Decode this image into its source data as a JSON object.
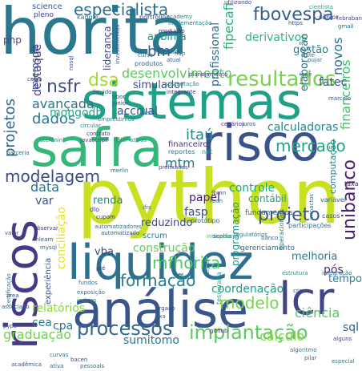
{
  "words": [
    {
      "text": "horita",
      "color": "#2a788e"
    },
    {
      "text": "sistemas",
      "color": "#1fa187"
    },
    {
      "text": "python",
      "color": "#c8e020"
    },
    {
      "text": "liquidez",
      "color": "#2d718e"
    },
    {
      "text": "safra",
      "color": "#35b779"
    },
    {
      "text": "risco",
      "color": "#3b528b"
    },
    {
      "text": "análise",
      "color": "#3a548c"
    },
    {
      "text": "riscos",
      "color": "#443b84"
    },
    {
      "text": "lcr",
      "color": "#414487"
    },
    {
      "text": "resultados",
      "color": "#7ad151"
    },
    {
      "text": "processos",
      "color": "#31688e"
    },
    {
      "text": "implantação",
      "color": "#5ec962"
    },
    {
      "text": "especialista",
      "color": "#2f6c8e"
    },
    {
      "text": "fbovespa",
      "color": "#355f8d"
    },
    {
      "text": "mercado",
      "color": "#22a785"
    },
    {
      "text": "projeto",
      "color": "#39568c"
    },
    {
      "text": "modelo",
      "color": "#7ad151"
    },
    {
      "text": "modelagem",
      "color": "#3e4a89"
    },
    {
      "text": "formação",
      "color": "#277f8e"
    },
    {
      "text": "mfhorita",
      "color": "#52c569"
    },
    {
      "text": "desenvolvimento",
      "color": "#5ec962"
    },
    {
      "text": "unibanco",
      "color": "#481f70"
    },
    {
      "text": "financeiros",
      "color": "#48c16e"
    },
    {
      "text": "projetos",
      "color": "#31688e"
    },
    {
      "text": "dados",
      "color": "#2a788e"
    },
    {
      "text": "dsa",
      "color": "#a5db36"
    },
    {
      "text": "nsfr",
      "color": "#3e4989"
    },
    {
      "text": "itaú",
      "color": "#25858e"
    },
    {
      "text": "mtm",
      "color": "#2c728e"
    },
    {
      "text": "ciência",
      "color": "#54c568"
    },
    {
      "text": "cálculo",
      "color": "#86d549"
    },
    {
      "text": "graduação",
      "color": "#75d054"
    },
    {
      "text": "sumitomo",
      "color": "#29798e"
    },
    {
      "text": "construção",
      "color": "#65cb5e"
    },
    {
      "text": "coordenação",
      "color": "#1e9c89"
    },
    {
      "text": "avançada",
      "color": "#2c738e"
    },
    {
      "text": "calculadoras",
      "color": "#24868e"
    },
    {
      "text": "mongodb",
      "color": "#22a785"
    },
    {
      "text": "derivativos",
      "color": "#2fb47c"
    },
    {
      "text": "fipecafi",
      "color": "#2db27d"
    },
    {
      "text": "bm",
      "color": "#38588c"
    },
    {
      "text": "destaque",
      "color": "#414487"
    },
    {
      "text": "controle",
      "color": "#22a884"
    },
    {
      "text": "papel",
      "color": "#482173"
    },
    {
      "text": "fasp",
      "color": "#3e4a89"
    },
    {
      "text": "var",
      "color": "#3b528b"
    },
    {
      "text": "renda",
      "color": "#23898e"
    },
    {
      "text": "conciliação",
      "color": "#e5e419"
    },
    {
      "text": "accrual",
      "color": "#3b528b"
    },
    {
      "text": "fatec",
      "color": "#3a548c"
    },
    {
      "text": "sql",
      "color": "#33638d"
    },
    {
      "text": "cea",
      "color": "#287d8e"
    },
    {
      "text": "cpa",
      "color": "#2c738e"
    },
    {
      "text": "relatórios",
      "color": "#90d743"
    },
    {
      "text": "simulador",
      "color": "#3e4989"
    },
    {
      "text": "novos",
      "color": "#2d718e"
    },
    {
      "text": "melhoria",
      "color": "#287c8e"
    },
    {
      "text": "pós",
      "color": "#46337e"
    },
    {
      "text": "tempo",
      "color": "#26828e"
    },
    {
      "text": "gestão",
      "color": "#27808e"
    },
    {
      "text": "data",
      "color": "#2e6f8e"
    },
    {
      "text": "elaboração",
      "color": "#2e6e8e"
    },
    {
      "text": "reduzindo",
      "color": "#3e4989"
    },
    {
      "text": "scrum",
      "color": "#2a788e"
    },
    {
      "text": "vba",
      "color": "#3f4889"
    },
    {
      "text": "liderança",
      "color": "#404688"
    },
    {
      "text": "anbima",
      "color": "#1f958b"
    },
    {
      "text": "profissional",
      "color": "#2d708e"
    },
    {
      "text": "financeiro",
      "color": "#46327e"
    },
    {
      "text": "experiência",
      "color": "#3b528b"
    },
    {
      "text": "programação",
      "color": "#1f968b"
    },
    {
      "text": "computação",
      "color": "#26828e"
    },
    {
      "text": "contábil",
      "color": "#1f9e89"
    },
    {
      "text": "microsoft",
      "color": "#414487"
    },
    {
      "text": "php",
      "color": "#3e4989"
    },
    {
      "text": "science",
      "color": "#38588c"
    },
    {
      "text": "pleno",
      "color": "#433e85"
    },
    {
      "text": "kaggle",
      "color": "#2a788e"
    },
    {
      "text": "portfólios",
      "color": "#3b528b"
    },
    {
      "text": "academy",
      "color": "#25858e"
    },
    {
      "text": "sênior",
      "color": "#46327e"
    },
    {
      "text": "cientista",
      "color": "#22a884"
    },
    {
      "text": "febraban",
      "color": "#3e4a89"
    },
    {
      "text": "gmail",
      "color": "#2d708e"
    },
    {
      "text": "implementação",
      "color": "#26828e"
    },
    {
      "text": "produção",
      "color": "#482475"
    },
    {
      "text": "tesouraria",
      "color": "#1f988b"
    },
    {
      "text": "fundamentos",
      "color": "#35608d"
    },
    {
      "text": "gerenciamento",
      "color": "#31688e"
    },
    {
      "text": "operacionais",
      "color": "#2a788e"
    },
    {
      "text": "participações",
      "color": "#2c728e"
    },
    {
      "text": "casos",
      "color": "#3d4e8a"
    },
    {
      "text": "variável",
      "color": "#33638d"
    },
    {
      "text": "taxa",
      "color": "#482677"
    },
    {
      "text": "dlo",
      "color": "#414487"
    },
    {
      "text": "ifrs",
      "color": "#2c728e"
    },
    {
      "text": "protótipo",
      "color": "#31688e"
    },
    {
      "text": "cupom",
      "color": "#46337e"
    },
    {
      "text": "mlearn",
      "color": "#3b528b"
    },
    {
      "text": "mysql",
      "color": "#31688e"
    },
    {
      "text": "automatizadores",
      "color": "#2d708e"
    },
    {
      "text": "automatizado",
      "color": "#3b528b"
    },
    {
      "text": "indicadores",
      "color": "#35b779"
    },
    {
      "text": "regulatórios",
      "color": "#2a788e"
    },
    {
      "text": "cenários",
      "color": "#46327e"
    },
    {
      "text": "juros",
      "color": "#3b528b"
    },
    {
      "text": "reportes",
      "color": "#287c8e"
    },
    {
      "text": "net",
      "color": "#1f9e89"
    },
    {
      "text": "prefixadas",
      "color": "#3e4a89"
    },
    {
      "text": "merlin",
      "color": "#2d708e"
    },
    {
      "text": "javascript",
      "color": "#404688"
    },
    {
      "text": "stefanini",
      "color": "#23898e"
    },
    {
      "text": "dólar",
      "color": "#25858e"
    },
    {
      "text": "ativos",
      "color": "#21918c"
    },
    {
      "text": "contrato",
      "color": "#433e85"
    },
    {
      "text": "asset",
      "color": "#2e6e8e"
    },
    {
      "text": "circular",
      "color": "#25838e"
    },
    {
      "text": "empréstimos",
      "color": "#287d8e"
    },
    {
      "text": "liquido",
      "color": "#3e4989"
    },
    {
      "text": "tibor",
      "color": "#3b528b"
    },
    {
      "text": "junior",
      "color": "#414487"
    },
    {
      "text": "integrante",
      "color": "#46337e"
    },
    {
      "text": "sustentação",
      "color": "#26828e"
    },
    {
      "text": "planejamento",
      "color": "#453781"
    },
    {
      "text": "fiap",
      "color": "#2d718e"
    },
    {
      "text": "produtos",
      "color": "#31688e"
    },
    {
      "text": "curso",
      "color": "#2f6c8e"
    },
    {
      "text": "atual",
      "color": "#365d8d"
    },
    {
      "text": "cursos",
      "color": "#2e6e8e"
    },
    {
      "text": "investimentos",
      "color": "#3b528b"
    },
    {
      "text": "utilizando",
      "color": "#433e85"
    },
    {
      "text": "suíte",
      "color": "#26828e"
    },
    {
      "text": "iene",
      "color": "#2e6f8e"
    },
    {
      "text": "marcelo",
      "color": "#3b528b"
    },
    {
      "text": "fundos",
      "color": "#2c728e"
    },
    {
      "text": "estrutura",
      "color": "#1f978b"
    },
    {
      "text": "integração",
      "color": "#2d708e"
    },
    {
      "text": "caixa",
      "color": "#3b528b"
    },
    {
      "text": "ativa",
      "color": "#31688e"
    },
    {
      "text": "especial",
      "color": "#26828e"
    },
    {
      "text": "bacen",
      "color": "#3e4989"
    },
    {
      "text": "fixa",
      "color": "#2c728e"
    },
    {
      "text": "github",
      "color": "#46337e"
    },
    {
      "text": "user",
      "color": "#31688e"
    },
    {
      "text": "pessoais",
      "color": "#2a788e"
    },
    {
      "text": "acadêmica",
      "color": "#3b528b"
    },
    {
      "text": "curvas",
      "color": "#2e6e8e"
    },
    {
      "text": "algoritmo",
      "color": "#2d708e"
    },
    {
      "text": "alguns",
      "color": "#3e4989"
    },
    {
      "text": "exposição",
      "color": "#2a788e"
    },
    {
      "text": "brgaap",
      "color": "#433e85"
    },
    {
      "text": "associado",
      "color": "#35608d"
    },
    {
      "text": "certificação",
      "color": "#2c728e"
    },
    {
      "text": "índices",
      "color": "#26828e"
    },
    {
      "text": "pyps",
      "color": "#3b528b"
    },
    {
      "text": "css",
      "color": "#3e4a89"
    },
    {
      "text": "pilar",
      "color": "#2a788e"
    },
    {
      "text": "server",
      "color": "#3b528b"
    },
    {
      "text": "sophia",
      "color": "#2d708e"
    },
    {
      "text": "observar",
      "color": "#46337e"
    },
    {
      "text": "valor",
      "color": "#35608d"
    },
    {
      "text": "parceria",
      "color": "#2e6f8e"
    },
    {
      "text": "https",
      "color": "#3e4989"
    },
    {
      "text": "pujar",
      "color": "#2c728e"
    },
    {
      "text": "banco",
      "color": "#31688e"
    },
    {
      "text": "área",
      "color": "#3b528b"
    },
    {
      "text": "pré",
      "color": "#46337e"
    },
    {
      "text": "fbmn",
      "color": "#3b528b"
    },
    {
      "text": "rban",
      "color": "#2a788e"
    },
    {
      "text": "impactos",
      "color": "#2c728e"
    },
    {
      "text": "nosql",
      "color": "#3b528b"
    }
  ]
}
